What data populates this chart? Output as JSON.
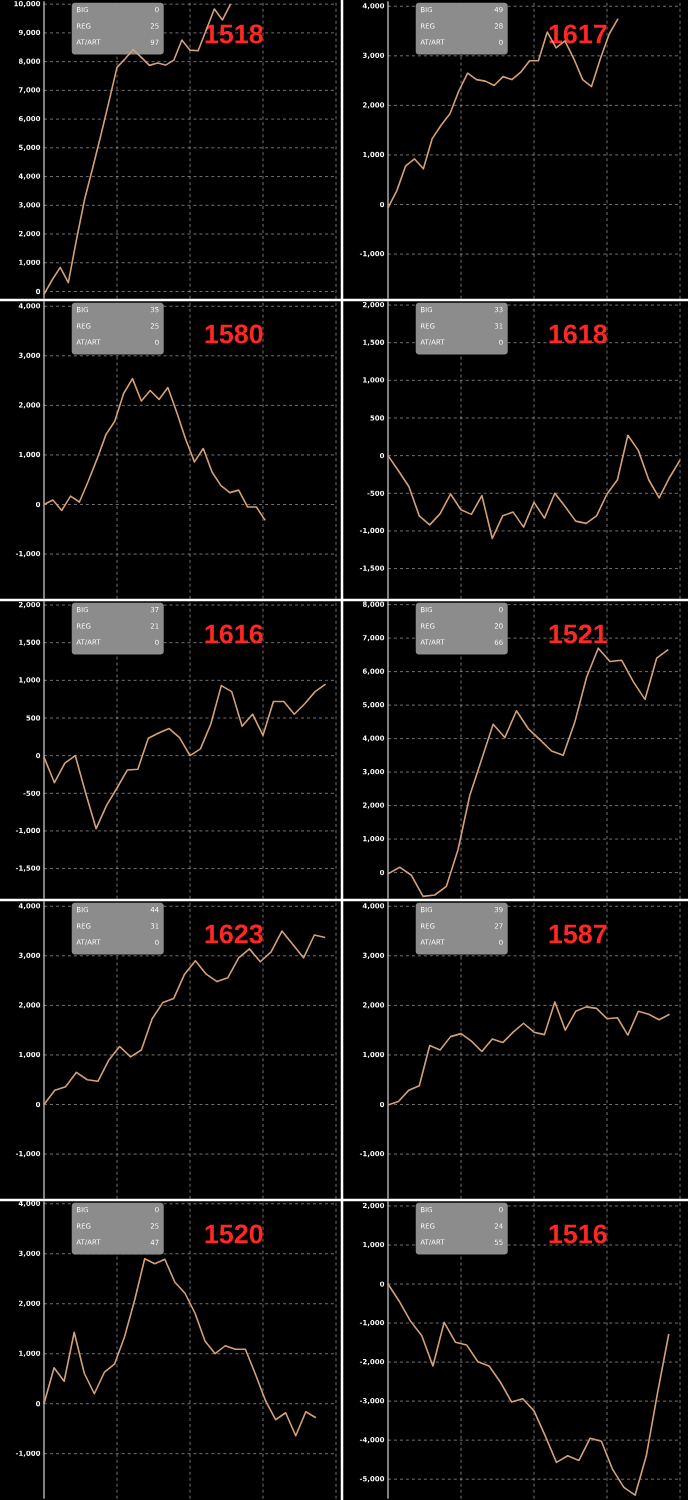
{
  "chart_data": [
    {
      "type": "line",
      "title": "1518",
      "annotations": [
        "BIG",
        "0",
        "REG",
        "25",
        "AT/ART",
        "97"
      ],
      "grid": true,
      "tick_labels": "y",
      "color": "#d4a078",
      "ylim": [
        -250,
        10100
      ],
      "yticks": [
        0,
        {
          "value": 1000,
          "label": "1,000"
        },
        {
          "value": 2000,
          "label": "2,000"
        },
        {
          "value": 3000,
          "label": "3,000"
        },
        {
          "value": 4000,
          "label": "4,000"
        },
        {
          "value": 5000,
          "label": "5,000"
        },
        {
          "value": 6000,
          "label": "6,000"
        },
        {
          "value": 7000,
          "label": "7,000"
        },
        {
          "value": 8000,
          "label": "8,000"
        },
        {
          "value": 9000,
          "label": "9,000"
        },
        {
          "value": 10000,
          "label": "10,000"
        }
      ],
      "categories": [
        null,
        null,
        null,
        null,
        null,
        null,
        null,
        null,
        null,
        null,
        null,
        null,
        null,
        null,
        null,
        null,
        null,
        null,
        null,
        null,
        null,
        null,
        null,
        null,
        null,
        null,
        null,
        null,
        null,
        null,
        null,
        null,
        null,
        null,
        null,
        null,
        null
      ],
      "values": [
        -100,
        400,
        840,
        310,
        1800,
        3200,
        4300,
        5430,
        6600,
        7800,
        8100,
        8420,
        8150,
        7870,
        7950,
        7880,
        8050,
        8750,
        8400,
        8380,
        9100,
        9830,
        9450,
        10000,
        null,
        null,
        null,
        null,
        null,
        null,
        null,
        null,
        null,
        null,
        null,
        null,
        null
      ]
    },
    {
      "type": "line",
      "title": "1617",
      "annotations": [
        "BIG",
        "49",
        "REG",
        "28",
        "AT/ART",
        "0"
      ],
      "grid": true,
      "tick_labels": "y",
      "color": "#d4a078",
      "ylim": [
        -1900,
        4100
      ],
      "yticks": [
        {
          "value": -1000,
          "label": "-1,000"
        },
        0,
        {
          "value": 1000,
          "label": "1,000"
        },
        {
          "value": 2000,
          "label": "2,000"
        },
        {
          "value": 3000,
          "label": "3,000"
        },
        {
          "value": 4000,
          "label": "4,000"
        }
      ],
      "categories": [
        null,
        null,
        null,
        null,
        null,
        null,
        null,
        null,
        null,
        null,
        null,
        null,
        null,
        null,
        null,
        null,
        null,
        null,
        null,
        null,
        null,
        null,
        null,
        null,
        null,
        null,
        null,
        null,
        null,
        null,
        null,
        null,
        null,
        null
      ],
      "values": [
        -70,
        280,
        780,
        920,
        720,
        1330,
        1600,
        1830,
        2290,
        2650,
        2520,
        2490,
        2400,
        2580,
        2520,
        2670,
        2900,
        2900,
        3480,
        3160,
        3300,
        2940,
        2520,
        2380,
        2940,
        3440,
        3750,
        null,
        null,
        null,
        null,
        null,
        null,
        null
      ]
    },
    {
      "type": "line",
      "title": "1580",
      "annotations": [
        "BIG",
        "35",
        "REG",
        "25",
        "AT/ART",
        "0"
      ],
      "grid": true,
      "tick_labels": "y",
      "color": "#d4a078",
      "ylim": [
        -1900,
        4100
      ],
      "yticks": [
        {
          "value": -1000,
          "label": "-1,000"
        },
        0,
        {
          "value": 1000,
          "label": "1,000"
        },
        {
          "value": 2000,
          "label": "2,000"
        },
        {
          "value": 3000,
          "label": "3,000"
        },
        {
          "value": 4000,
          "label": "4,000"
        }
      ],
      "categories": [
        null,
        null,
        null,
        null,
        null,
        null,
        null,
        null,
        null,
        null,
        null,
        null,
        null,
        null,
        null,
        null,
        null,
        null,
        null,
        null,
        null,
        null,
        null,
        null,
        null,
        null,
        null,
        null,
        null,
        null,
        null,
        null,
        null,
        null
      ],
      "values": [
        0,
        90,
        -120,
        170,
        50,
        470,
        920,
        1410,
        1680,
        2240,
        2540,
        2090,
        2300,
        2120,
        2360,
        1860,
        1320,
        860,
        1130,
        650,
        380,
        240,
        290,
        -50,
        -50,
        -320,
        null,
        null,
        null,
        null,
        null,
        null,
        null,
        null
      ]
    },
    {
      "type": "line",
      "title": "1618",
      "annotations": [
        "BIG",
        "33",
        "REG",
        "31",
        "AT/ART",
        "0"
      ],
      "grid": true,
      "tick_labels": "y",
      "color": "#d4a078",
      "ylim": [
        -1900,
        2050
      ],
      "yticks": [
        {
          "value": -1500,
          "label": "-1,500"
        },
        {
          "value": -1000,
          "label": "-1,000"
        },
        -500,
        0,
        500,
        {
          "value": 1000,
          "label": "1,000"
        },
        {
          "value": 1500,
          "label": "1,500"
        },
        {
          "value": 2000,
          "label": "2,000"
        }
      ],
      "categories": [
        null,
        null,
        null,
        null,
        null,
        null,
        null,
        null,
        null,
        null,
        null,
        null,
        null,
        null,
        null,
        null,
        null,
        null,
        null,
        null,
        null,
        null,
        null,
        null,
        null,
        null,
        null,
        null,
        null
      ],
      "values": [
        0,
        -200,
        -410,
        -800,
        -920,
        -770,
        -510,
        -720,
        -780,
        -530,
        -1100,
        -800,
        -750,
        -950,
        -620,
        -830,
        -500,
        -680,
        -870,
        -900,
        -800,
        -510,
        -320,
        270,
        70,
        -320,
        -560,
        -290,
        -60
      ]
    },
    {
      "type": "line",
      "title": "1616",
      "annotations": [
        "BIG",
        "37",
        "REG",
        "21",
        "AT/ART",
        "0"
      ],
      "grid": true,
      "tick_labels": "y",
      "color": "#d4a078",
      "ylim": [
        -1900,
        2050
      ],
      "yticks": [
        {
          "value": -1500,
          "label": "-1,500"
        },
        {
          "value": -1000,
          "label": "-1,000"
        },
        -500,
        0,
        500,
        {
          "value": 1000,
          "label": "1,000"
        },
        {
          "value": 1500,
          "label": "1,500"
        },
        {
          "value": 2000,
          "label": "2,000"
        }
      ],
      "categories": [
        null,
        null,
        null,
        null,
        null,
        null,
        null,
        null,
        null,
        null,
        null,
        null,
        null,
        null,
        null,
        null,
        null,
        null,
        null,
        null,
        null,
        null,
        null,
        null,
        null,
        null,
        null,
        null,
        null
      ],
      "values": [
        -20,
        -360,
        -100,
        0,
        -500,
        -970,
        -660,
        -430,
        -190,
        -180,
        230,
        300,
        360,
        240,
        0,
        90,
        420,
        930,
        850,
        390,
        550,
        270,
        720,
        720,
        550,
        690,
        850,
        950,
        null
      ]
    },
    {
      "type": "line",
      "title": "1521",
      "annotations": [
        "BIG",
        "0",
        "REG",
        "20",
        "AT/ART",
        "66"
      ],
      "grid": true,
      "tick_labels": "y",
      "color": "#d4a078",
      "ylim": [
        -780,
        8100
      ],
      "yticks": [
        0,
        {
          "value": 1000,
          "label": "1,000"
        },
        {
          "value": 2000,
          "label": "2,000"
        },
        {
          "value": 3000,
          "label": "3,000"
        },
        {
          "value": 4000,
          "label": "4,000"
        },
        {
          "value": 5000,
          "label": "5,000"
        },
        {
          "value": 6000,
          "label": "6,000"
        },
        {
          "value": 7000,
          "label": "7,000"
        },
        {
          "value": 8000,
          "label": "8,000"
        }
      ],
      "categories": [
        null,
        null,
        null,
        null,
        null,
        null,
        null,
        null,
        null,
        null,
        null,
        null,
        null,
        null,
        null,
        null,
        null,
        null,
        null,
        null,
        null,
        null,
        null,
        null,
        null,
        null
      ],
      "values": [
        -40,
        160,
        -80,
        -710,
        -670,
        -410,
        690,
        2300,
        3360,
        4430,
        4030,
        4830,
        4300,
        3970,
        3630,
        3500,
        4500,
        5830,
        6700,
        6300,
        6340,
        5700,
        5170,
        6400,
        6660,
        null
      ]
    },
    {
      "type": "line",
      "title": "1623",
      "annotations": [
        "BIG",
        "44",
        "REG",
        "31",
        "AT/ART",
        "0"
      ],
      "grid": true,
      "tick_labels": "y",
      "color": "#d4a078",
      "ylim": [
        -1900,
        4100
      ],
      "yticks": [
        {
          "value": -1000,
          "label": "-1,000"
        },
        0,
        {
          "value": 1000,
          "label": "1,000"
        },
        {
          "value": 2000,
          "label": "2,000"
        },
        {
          "value": 3000,
          "label": "3,000"
        },
        {
          "value": 4000,
          "label": "4,000"
        }
      ],
      "categories": [
        null,
        null,
        null,
        null,
        null,
        null,
        null,
        null,
        null,
        null,
        null,
        null,
        null,
        null,
        null,
        null,
        null,
        null,
        null,
        null,
        null,
        null,
        null,
        null,
        null,
        null,
        null,
        null
      ],
      "values": [
        0,
        290,
        360,
        650,
        500,
        470,
        900,
        1170,
        960,
        1100,
        1730,
        2060,
        2140,
        2630,
        2900,
        2630,
        2480,
        2560,
        2960,
        3140,
        2880,
        3080,
        3500,
        3230,
        2960,
        3420,
        3370,
        null
      ]
    },
    {
      "type": "line",
      "title": "1587",
      "annotations": [
        "BIG",
        "39",
        "REG",
        "27",
        "AT/ART",
        "0"
      ],
      "grid": true,
      "tick_labels": "y",
      "color": "#d4a078",
      "ylim": [
        -1900,
        4100
      ],
      "yticks": [
        {
          "value": -1000,
          "label": "-1,000"
        },
        0,
        {
          "value": 1000,
          "label": "1,000"
        },
        {
          "value": 2000,
          "label": "2,000"
        },
        {
          "value": 3000,
          "label": "3,000"
        },
        {
          "value": 4000,
          "label": "4,000"
        }
      ],
      "categories": [
        null,
        null,
        null,
        null,
        null,
        null,
        null,
        null,
        null,
        null,
        null,
        null,
        null,
        null,
        null,
        null,
        null,
        null,
        null,
        null,
        null,
        null,
        null,
        null,
        null,
        null,
        null,
        null,
        null
      ],
      "values": [
        -10,
        60,
        290,
        380,
        1190,
        1100,
        1370,
        1430,
        1280,
        1070,
        1320,
        1250,
        1460,
        1640,
        1460,
        1410,
        2070,
        1500,
        1880,
        1970,
        1940,
        1730,
        1750,
        1400,
        1880,
        1820,
        1710,
        1820,
        null
      ]
    },
    {
      "type": "line",
      "title": "1520",
      "annotations": [
        "BIG",
        "0",
        "REG",
        "25",
        "AT/ART",
        "47"
      ],
      "grid": true,
      "tick_labels": "y",
      "color": "#d4a078",
      "ylim": [
        -1900,
        4050
      ],
      "yticks": [
        {
          "value": -1000,
          "label": "-1,000"
        },
        0,
        {
          "value": 1000,
          "label": "1,000"
        },
        {
          "value": 2000,
          "label": "2,000"
        },
        {
          "value": 3000,
          "label": "3,000"
        },
        {
          "value": 4000,
          "label": "4,000"
        }
      ],
      "categories": [
        null,
        null,
        null,
        null,
        null,
        null,
        null,
        null,
        null,
        null,
        null,
        null,
        null,
        null,
        null,
        null,
        null,
        null,
        null,
        null,
        null,
        null,
        null,
        null,
        null,
        null,
        null,
        null,
        null,
        null
      ],
      "values": [
        0,
        720,
        450,
        1430,
        610,
        200,
        630,
        790,
        1340,
        2070,
        2900,
        2800,
        2890,
        2430,
        2210,
        1810,
        1250,
        1000,
        1160,
        1090,
        1090,
        590,
        60,
        -320,
        -180,
        -640,
        -160,
        -280,
        null,
        null
      ]
    },
    {
      "type": "line",
      "title": "1516",
      "annotations": [
        "BIG",
        "0",
        "REG",
        "24",
        "AT/ART",
        "55"
      ],
      "grid": true,
      "tick_labels": "y",
      "color": "#d4a078",
      "ylim": [
        -5500,
        2120
      ],
      "yticks": [
        {
          "value": -5000,
          "label": "-5,000"
        },
        {
          "value": -4000,
          "label": "-4,000"
        },
        {
          "value": -3000,
          "label": "-3,000"
        },
        {
          "value": -2000,
          "label": "-2,000"
        },
        {
          "value": -1000,
          "label": "-1,000"
        },
        0,
        {
          "value": 1000,
          "label": "1,000"
        },
        {
          "value": 2000,
          "label": "2,000"
        }
      ],
      "categories": [
        null,
        null,
        null,
        null,
        null,
        null,
        null,
        null,
        null,
        null,
        null,
        null,
        null,
        null,
        null,
        null,
        null,
        null,
        null,
        null,
        null,
        null,
        null,
        null,
        null,
        null,
        null
      ],
      "values": [
        0,
        -440,
        -950,
        -1320,
        -2100,
        -980,
        -1490,
        -1560,
        -1990,
        -2100,
        -2510,
        -3020,
        -2940,
        -3250,
        -3890,
        -4570,
        -4400,
        -4520,
        -3950,
        -4030,
        -4750,
        -5210,
        -5410,
        -4400,
        -2790,
        -1280,
        null
      ]
    }
  ]
}
